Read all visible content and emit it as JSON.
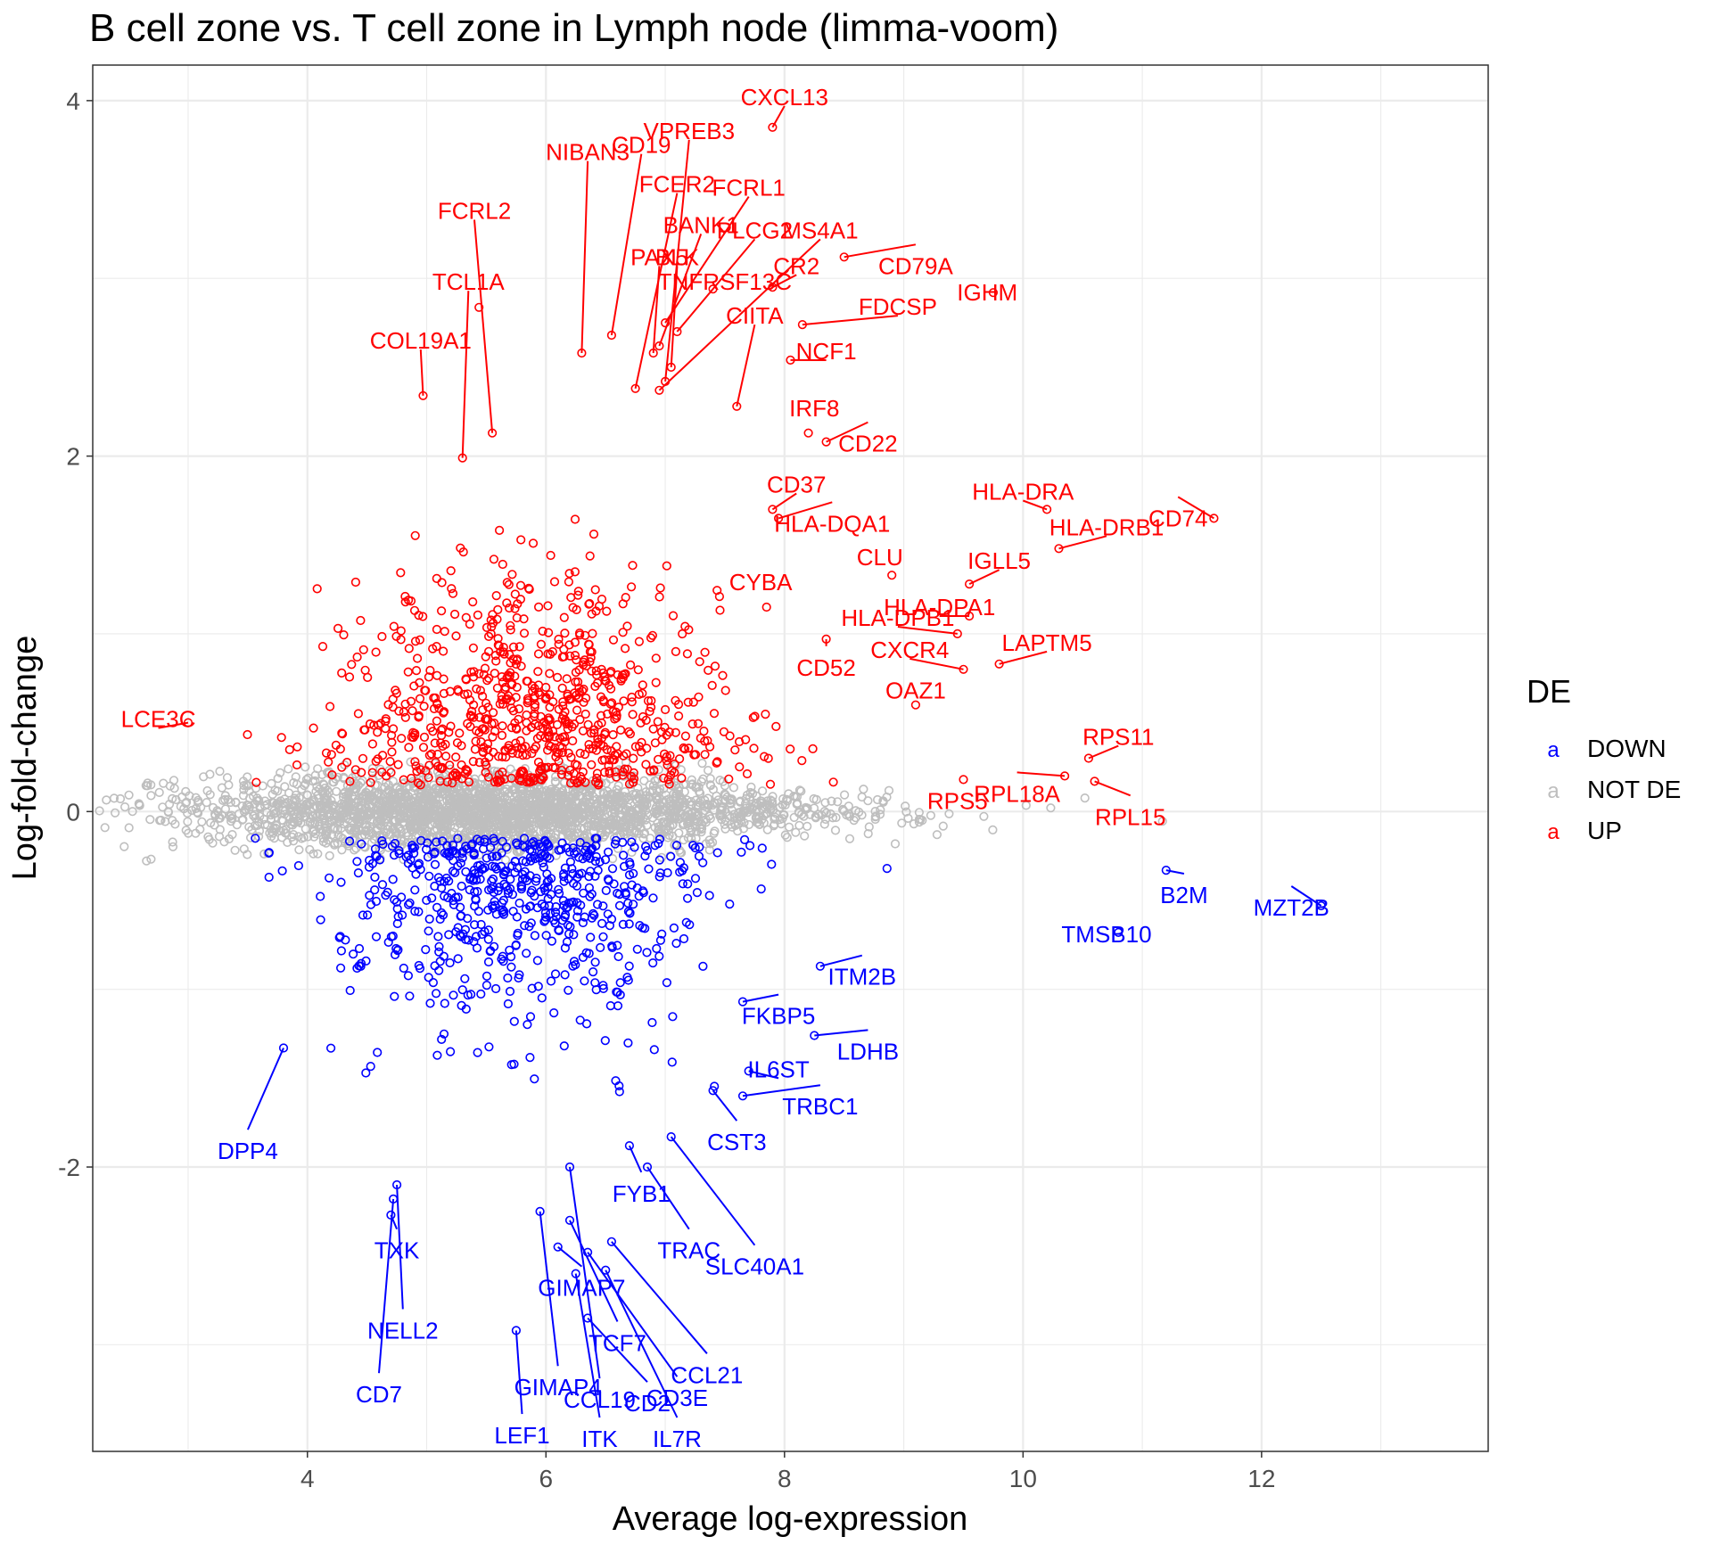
{
  "chart_data": {
    "type": "scatter",
    "title": "B cell zone vs. T cell zone in Lymph node (limma-voom)",
    "xlabel": "Average log-expression",
    "ylabel": "Log-fold-change",
    "xlim": [
      2.2,
      13.9
    ],
    "ylim": [
      -3.6,
      4.2
    ],
    "x_ticks": [
      4,
      6,
      8,
      10,
      12
    ],
    "y_ticks": [
      -2,
      0,
      2,
      4
    ],
    "grid": true,
    "legend": {
      "title": "DE",
      "placement": "right",
      "key_glyph": "a",
      "entries": [
        {
          "label": "DOWN",
          "color": "#0000ff"
        },
        {
          "label": "NOT DE",
          "color": "#bebebe"
        },
        {
          "label": "UP",
          "color": "#ff0000"
        }
      ]
    },
    "colors": {
      "UP": "#ff0000",
      "DOWN": "#0000ff",
      "NOT DE": "#bebebe",
      "grid": "#ebebeb",
      "panel_border": "#333333",
      "tick_text": "#4d4d4d"
    },
    "background_clouds": [
      {
        "series": "NOT DE",
        "n": 2600,
        "x_mean": 5.6,
        "x_sd": 1.3,
        "y_sd": 0.1
      },
      {
        "series": "UP",
        "n": 800,
        "x_mean": 5.9,
        "x_sd": 0.8,
        "y_sd": 0.35
      },
      {
        "series": "DOWN",
        "n": 620,
        "x_mean": 5.8,
        "x_sd": 0.8,
        "y_sd": 0.3
      }
    ],
    "labeled_points": [
      {
        "label": "CXCL13",
        "x": 7.9,
        "y": 3.85,
        "series": "UP",
        "tx": 8.0,
        "ty": 4.02
      },
      {
        "label": "VPREB3",
        "x": 7.0,
        "y": 2.42,
        "series": "UP",
        "tx": 7.2,
        "ty": 3.83
      },
      {
        "label": "NIBAN3",
        "x": 6.3,
        "y": 2.58,
        "series": "UP",
        "tx": 6.35,
        "ty": 3.71
      },
      {
        "label": "CD19",
        "x": 6.55,
        "y": 2.68,
        "series": "UP",
        "tx": 6.8,
        "ty": 3.75
      },
      {
        "label": "FCER2",
        "x": 6.75,
        "y": 2.38,
        "series": "UP",
        "tx": 7.1,
        "ty": 3.53
      },
      {
        "label": "FCRL1",
        "x": 7.0,
        "y": 2.75,
        "series": "UP",
        "tx": 7.7,
        "ty": 3.51
      },
      {
        "label": "FCRL2",
        "x": 5.55,
        "y": 2.13,
        "series": "UP",
        "tx": 5.4,
        "ty": 3.38
      },
      {
        "label": "BANK1",
        "x": 6.95,
        "y": 2.62,
        "series": "UP",
        "tx": 7.3,
        "ty": 3.3
      },
      {
        "label": "PLCG2",
        "x": 7.1,
        "y": 2.7,
        "series": "UP",
        "tx": 7.75,
        "ty": 3.27
      },
      {
        "label": "MS4A1",
        "x": 6.95,
        "y": 2.37,
        "series": "UP",
        "tx": 8.3,
        "ty": 3.27
      },
      {
        "label": "PAX5",
        "x": 6.9,
        "y": 2.58,
        "series": "UP",
        "tx": 6.95,
        "ty": 3.12
      },
      {
        "label": "BLK",
        "x": 7.05,
        "y": 2.5,
        "series": "UP",
        "tx": 7.1,
        "ty": 3.12
      },
      {
        "label": "CR2",
        "x": 7.9,
        "y": 2.95,
        "series": "UP",
        "tx": 8.1,
        "ty": 3.07
      },
      {
        "label": "CD79A",
        "x": 8.5,
        "y": 3.12,
        "series": "UP",
        "tx": 9.1,
        "ty": 3.07
      },
      {
        "label": "TNFRSF13C",
        "x": 7.4,
        "y": 2.94,
        "series": "UP",
        "tx": 7.5,
        "ty": 2.98
      },
      {
        "label": "TCL1A",
        "x": 5.3,
        "y": 1.99,
        "series": "UP",
        "tx": 5.35,
        "ty": 2.98
      },
      {
        "label": "IGHM",
        "x": 9.75,
        "y": 2.92,
        "series": "UP",
        "tx": 9.7,
        "ty": 2.92
      },
      {
        "label": "CIITA",
        "x": 7.6,
        "y": 2.28,
        "series": "UP",
        "tx": 7.75,
        "ty": 2.79
      },
      {
        "label": "FDCSP",
        "x": 8.15,
        "y": 2.74,
        "series": "UP",
        "tx": 8.95,
        "ty": 2.84
      },
      {
        "label": "COL19A1",
        "x": 4.97,
        "y": 2.34,
        "series": "UP",
        "tx": 4.95,
        "ty": 2.65
      },
      {
        "label": "NCF1",
        "x": 8.05,
        "y": 2.54,
        "series": "UP",
        "tx": 8.35,
        "ty": 2.59
      },
      {
        "label": "IRF8",
        "x": 8.2,
        "y": 2.13,
        "series": "UP",
        "tx": 8.25,
        "ty": 2.27
      },
      {
        "label": "CD22",
        "x": 8.35,
        "y": 2.08,
        "series": "UP",
        "tx": 8.7,
        "ty": 2.07
      },
      {
        "label": "CD37",
        "x": 7.9,
        "y": 1.7,
        "series": "UP",
        "tx": 8.1,
        "ty": 1.84
      },
      {
        "label": "HLA-DRA",
        "x": 10.2,
        "y": 1.7,
        "series": "UP",
        "tx": 10.0,
        "ty": 1.8
      },
      {
        "label": "CD74",
        "x": 11.6,
        "y": 1.65,
        "series": "UP",
        "tx": 11.3,
        "ty": 1.65
      },
      {
        "label": "HLA-DQA1",
        "x": 7.95,
        "y": 1.65,
        "series": "UP",
        "tx": 8.4,
        "ty": 1.62
      },
      {
        "label": "HLA-DRB1",
        "x": 10.3,
        "y": 1.48,
        "series": "UP",
        "tx": 10.7,
        "ty": 1.6
      },
      {
        "label": "CLU",
        "x": 8.9,
        "y": 1.33,
        "series": "UP",
        "tx": 8.8,
        "ty": 1.43
      },
      {
        "label": "IGLL5",
        "x": 9.55,
        "y": 1.28,
        "series": "UP",
        "tx": 9.8,
        "ty": 1.41
      },
      {
        "label": "CYBA",
        "x": 7.85,
        "y": 1.15,
        "series": "UP",
        "tx": 7.8,
        "ty": 1.29
      },
      {
        "label": "HLA-DPB1",
        "x": 9.45,
        "y": 1.0,
        "series": "UP",
        "tx": 8.95,
        "ty": 1.09
      },
      {
        "label": "HLA-DPA1",
        "x": 9.55,
        "y": 1.1,
        "series": "UP",
        "tx": 9.3,
        "ty": 1.15
      },
      {
        "label": "CXCR4",
        "x": 9.5,
        "y": 0.8,
        "series": "UP",
        "tx": 9.05,
        "ty": 0.91
      },
      {
        "label": "LAPTM5",
        "x": 9.8,
        "y": 0.83,
        "series": "UP",
        "tx": 10.2,
        "ty": 0.95
      },
      {
        "label": "CD52",
        "x": 8.35,
        "y": 0.97,
        "series": "UP",
        "tx": 8.35,
        "ty": 0.81
      },
      {
        "label": "OAZ1",
        "x": 9.1,
        "y": 0.6,
        "series": "UP",
        "tx": 9.1,
        "ty": 0.68
      },
      {
        "label": "LCE3C",
        "x": 3.0,
        "y": 0.5,
        "series": "UP",
        "tx": 2.75,
        "ty": 0.52
      },
      {
        "label": "RPS11",
        "x": 10.55,
        "y": 0.3,
        "series": "UP",
        "tx": 10.8,
        "ty": 0.42
      },
      {
        "label": "RPS5",
        "x": 9.5,
        "y": 0.18,
        "series": "UP",
        "tx": 9.45,
        "ty": 0.06
      },
      {
        "label": "RPL18A",
        "x": 10.35,
        "y": 0.2,
        "series": "UP",
        "tx": 9.95,
        "ty": 0.1
      },
      {
        "label": "RPL15",
        "x": 10.6,
        "y": 0.17,
        "series": "UP",
        "tx": 10.9,
        "ty": -0.03
      },
      {
        "label": "B2M",
        "x": 11.2,
        "y": -0.33,
        "series": "DOWN",
        "tx": 11.35,
        "ty": -0.47
      },
      {
        "label": "MZT2B",
        "x": 12.5,
        "y": -0.53,
        "series": "DOWN",
        "tx": 12.25,
        "ty": -0.54
      },
      {
        "label": "TMSB10",
        "x": 10.8,
        "y": -0.68,
        "series": "DOWN",
        "tx": 10.7,
        "ty": -0.69
      },
      {
        "label": "ITM2B",
        "x": 8.3,
        "y": -0.87,
        "series": "DOWN",
        "tx": 8.65,
        "ty": -0.93
      },
      {
        "label": "FKBP5",
        "x": 7.65,
        "y": -1.07,
        "series": "DOWN",
        "tx": 7.95,
        "ty": -1.15
      },
      {
        "label": "LDHB",
        "x": 8.25,
        "y": -1.26,
        "series": "DOWN",
        "tx": 8.7,
        "ty": -1.35
      },
      {
        "label": "IL6ST",
        "x": 7.7,
        "y": -1.46,
        "series": "DOWN",
        "tx": 7.95,
        "ty": -1.45
      },
      {
        "label": "TRBC1",
        "x": 7.65,
        "y": -1.6,
        "series": "DOWN",
        "tx": 8.3,
        "ty": -1.66
      },
      {
        "label": "CST3",
        "x": 7.4,
        "y": -1.57,
        "series": "DOWN",
        "tx": 7.6,
        "ty": -1.86
      },
      {
        "label": "DPP4",
        "x": 3.8,
        "y": -1.33,
        "series": "DOWN",
        "tx": 3.5,
        "ty": -1.91
      },
      {
        "label": "FYB1",
        "x": 6.7,
        "y": -1.88,
        "series": "DOWN",
        "tx": 6.8,
        "ty": -2.15
      },
      {
        "label": "TRAC",
        "x": 6.85,
        "y": -2.0,
        "series": "DOWN",
        "tx": 7.2,
        "ty": -2.47
      },
      {
        "label": "SLC40A1",
        "x": 7.05,
        "y": -1.83,
        "series": "DOWN",
        "tx": 7.75,
        "ty": -2.56
      },
      {
        "label": "TXK",
        "x": 4.7,
        "y": -2.27,
        "series": "DOWN",
        "tx": 4.75,
        "ty": -2.47
      },
      {
        "label": "GIMAP7",
        "x": 6.1,
        "y": -2.45,
        "series": "DOWN",
        "tx": 6.3,
        "ty": -2.68
      },
      {
        "label": "NELL2",
        "x": 4.75,
        "y": -2.1,
        "series": "DOWN",
        "tx": 4.8,
        "ty": -2.92
      },
      {
        "label": "TCF7",
        "x": 6.2,
        "y": -2.3,
        "series": "DOWN",
        "tx": 6.6,
        "ty": -2.99
      },
      {
        "label": "CCL21",
        "x": 6.55,
        "y": -2.42,
        "series": "DOWN",
        "tx": 7.35,
        "ty": -3.17
      },
      {
        "label": "GIMAP4",
        "x": 5.95,
        "y": -2.25,
        "series": "DOWN",
        "tx": 6.1,
        "ty": -3.24
      },
      {
        "label": "CD7",
        "x": 4.72,
        "y": -2.18,
        "series": "DOWN",
        "tx": 4.6,
        "ty": -3.28
      },
      {
        "label": "CD3E",
        "x": 6.35,
        "y": -2.48,
        "series": "DOWN",
        "tx": 7.1,
        "ty": -3.3
      },
      {
        "label": "CCL19",
        "x": 6.2,
        "y": -2.0,
        "series": "DOWN",
        "tx": 6.45,
        "ty": -3.31
      },
      {
        "label": "CD2",
        "x": 6.35,
        "y": -2.85,
        "series": "DOWN",
        "tx": 6.85,
        "ty": -3.33
      },
      {
        "label": "LEF1",
        "x": 5.75,
        "y": -2.92,
        "series": "DOWN",
        "tx": 5.8,
        "ty": -3.51
      },
      {
        "label": "ITK",
        "x": 6.25,
        "y": -2.6,
        "series": "DOWN",
        "tx": 6.45,
        "ty": -3.53
      },
      {
        "label": "IL7R",
        "x": 6.5,
        "y": -2.58,
        "series": "DOWN",
        "tx": 7.1,
        "ty": -3.53
      }
    ]
  }
}
